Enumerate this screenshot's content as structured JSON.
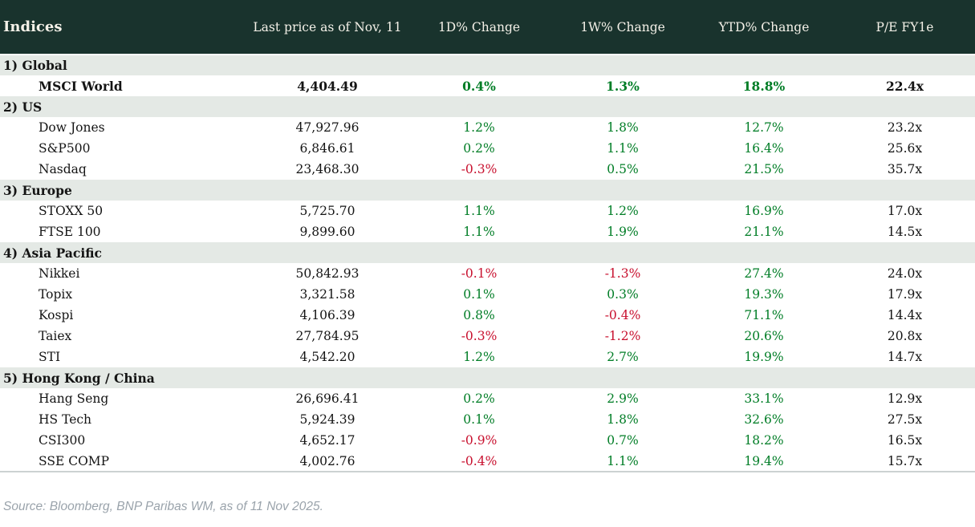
{
  "colors": {
    "header_bg": "#19332d",
    "header_text": "#f4f1e8",
    "section_bg": "#e4e9e5",
    "positive": "#007d26",
    "negative": "#c8102e",
    "text": "#141414",
    "footer_text": "#9aa3ab",
    "table_bottom_border": "#ccd2d2"
  },
  "table": {
    "columns": [
      "Indices",
      "Last price as of Nov, 11",
      "1D% Change",
      "1W% Change",
      "YTD% Change",
      "P/E FY1e"
    ],
    "sections": [
      {
        "label": "1) Global",
        "rows": [
          {
            "name": "MSCI World",
            "last_price": "4,404.49",
            "chg_1d": "0.4%",
            "chg_1w": "1.3%",
            "chg_ytd": "18.8%",
            "pe_fy1e": "22.4x",
            "bold": true
          }
        ]
      },
      {
        "label": "2) US",
        "rows": [
          {
            "name": "Dow Jones",
            "last_price": "47,927.96",
            "chg_1d": "1.2%",
            "chg_1w": "1.8%",
            "chg_ytd": "12.7%",
            "pe_fy1e": "23.2x"
          },
          {
            "name": "S&P500",
            "last_price": "6,846.61",
            "chg_1d": "0.2%",
            "chg_1w": "1.1%",
            "chg_ytd": "16.4%",
            "pe_fy1e": "25.6x"
          },
          {
            "name": "Nasdaq",
            "last_price": "23,468.30",
            "chg_1d": "-0.3%",
            "chg_1w": "0.5%",
            "chg_ytd": "21.5%",
            "pe_fy1e": "35.7x"
          }
        ]
      },
      {
        "label": "3) Europe",
        "rows": [
          {
            "name": "STOXX 50",
            "last_price": "5,725.70",
            "chg_1d": "1.1%",
            "chg_1w": "1.2%",
            "chg_ytd": "16.9%",
            "pe_fy1e": "17.0x"
          },
          {
            "name": "FTSE 100",
            "last_price": "9,899.60",
            "chg_1d": "1.1%",
            "chg_1w": "1.9%",
            "chg_ytd": "21.1%",
            "pe_fy1e": "14.5x"
          }
        ]
      },
      {
        "label": "4) Asia Pacific",
        "rows": [
          {
            "name": "Nikkei",
            "last_price": "50,842.93",
            "chg_1d": "-0.1%",
            "chg_1w": "-1.3%",
            "chg_ytd": "27.4%",
            "pe_fy1e": "24.0x"
          },
          {
            "name": "Topix",
            "last_price": "3,321.58",
            "chg_1d": "0.1%",
            "chg_1w": "0.3%",
            "chg_ytd": "19.3%",
            "pe_fy1e": "17.9x"
          },
          {
            "name": "Kospi",
            "last_price": "4,106.39",
            "chg_1d": "0.8%",
            "chg_1w": "-0.4%",
            "chg_ytd": "71.1%",
            "pe_fy1e": "14.4x"
          },
          {
            "name": "Taiex",
            "last_price": "27,784.95",
            "chg_1d": "-0.3%",
            "chg_1w": "-1.2%",
            "chg_ytd": "20.6%",
            "pe_fy1e": "20.8x"
          },
          {
            "name": "STI",
            "last_price": "4,542.20",
            "chg_1d": "1.2%",
            "chg_1w": "2.7%",
            "chg_ytd": "19.9%",
            "pe_fy1e": "14.7x"
          }
        ]
      },
      {
        "label": "5) Hong Kong / China",
        "rows": [
          {
            "name": "Hang Seng",
            "last_price": "26,696.41",
            "chg_1d": "0.2%",
            "chg_1w": "2.9%",
            "chg_ytd": "33.1%",
            "pe_fy1e": "12.9x"
          },
          {
            "name": "HS Tech",
            "last_price": "5,924.39",
            "chg_1d": "0.1%",
            "chg_1w": "1.8%",
            "chg_ytd": "32.6%",
            "pe_fy1e": "27.5x"
          },
          {
            "name": "CSI300",
            "last_price": "4,652.17",
            "chg_1d": "-0.9%",
            "chg_1w": "0.7%",
            "chg_ytd": "18.2%",
            "pe_fy1e": "16.5x"
          },
          {
            "name": "SSE COMP",
            "last_price": "4,002.76",
            "chg_1d": "-0.4%",
            "chg_1w": "1.1%",
            "chg_ytd": "19.4%",
            "pe_fy1e": "15.7x"
          }
        ]
      }
    ]
  },
  "footer": {
    "source": "Source: Bloomberg, BNP Paribas WM, as of 11 Nov 2025."
  }
}
